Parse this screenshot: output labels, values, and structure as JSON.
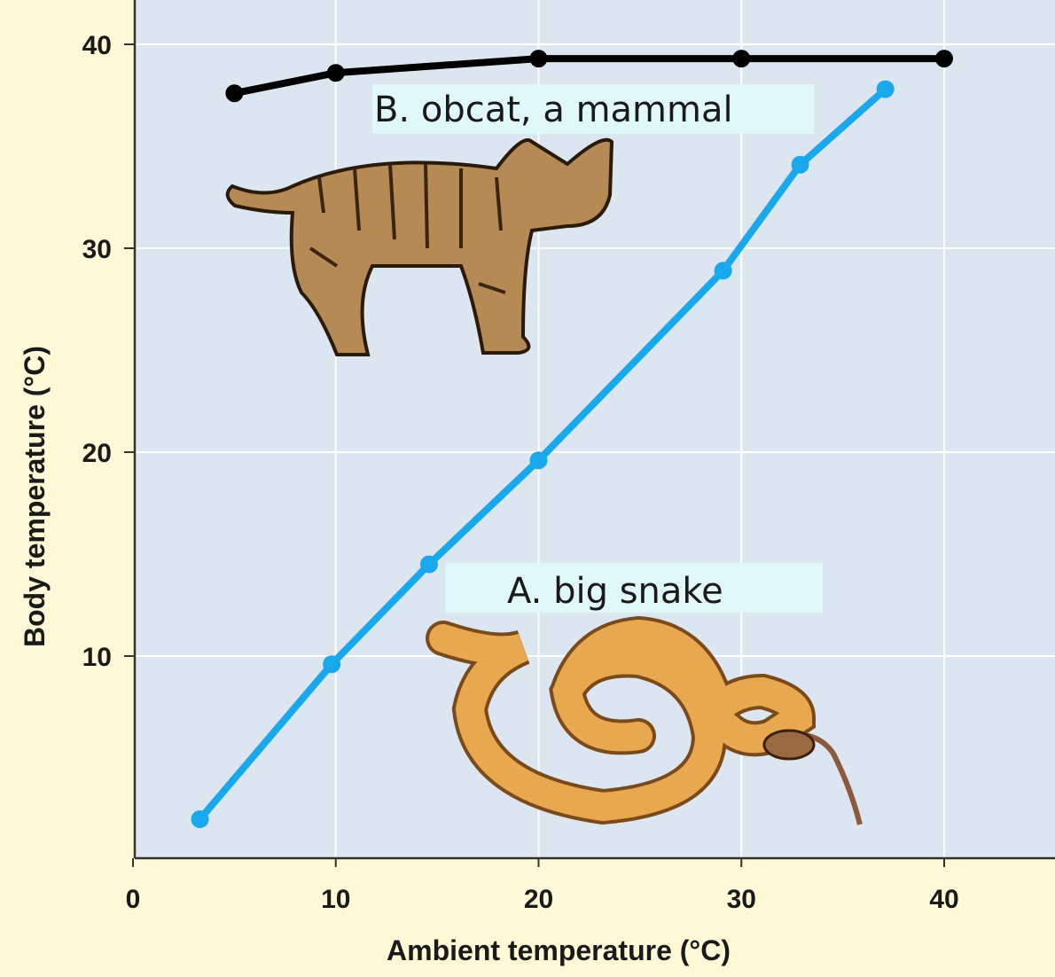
{
  "chart_data": {
    "type": "line",
    "title": "",
    "xlabel": "Ambient temperature (°C)",
    "ylabel": "Body temperature (°C)",
    "xlim": [
      0,
      45
    ],
    "ylim": [
      0,
      42
    ],
    "xticks": [
      0,
      10,
      20,
      30,
      40
    ],
    "yticks": [
      10,
      20,
      30,
      40
    ],
    "grid": true,
    "background_color": "#dce6f0",
    "series": [
      {
        "name": "B. obcat, a mammal",
        "color": "#000000",
        "x": [
          5,
          10,
          20,
          30,
          40
        ],
        "y": [
          37.6,
          38.6,
          39.3,
          39.3,
          39.3
        ]
      },
      {
        "name": "A. big snake",
        "color": "#1aa8ec",
        "x": [
          3.3,
          9.8,
          14.6,
          20,
          29.1,
          32.9,
          37.1
        ],
        "y": [
          2.0,
          9.6,
          14.5,
          19.6,
          28.9,
          34.1,
          37.8
        ]
      }
    ],
    "illustrations": [
      "bobcat",
      "snake-eating-mouse"
    ]
  }
}
